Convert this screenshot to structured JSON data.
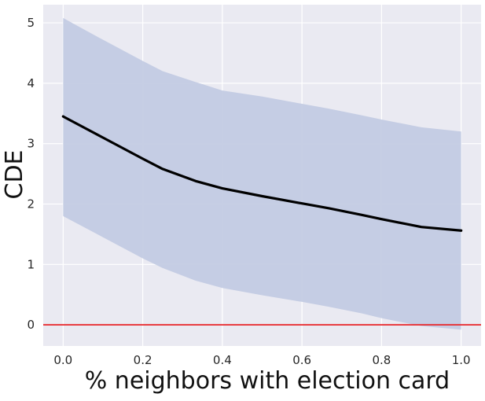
{
  "chart_data": {
    "type": "line",
    "title": "",
    "xlabel": "% neighbors with election card",
    "ylabel": "CDE",
    "xlim": [
      -0.05,
      1.05
    ],
    "ylim": [
      -0.35,
      5.3
    ],
    "x_ticks": [
      0.0,
      0.2,
      0.4,
      0.6,
      0.8,
      1.0
    ],
    "x_tick_labels": [
      "0.0",
      "0.2",
      "0.4",
      "0.6",
      "0.8",
      "1.0"
    ],
    "y_ticks": [
      0,
      1,
      2,
      3,
      4,
      5
    ],
    "y_tick_labels": [
      "0",
      "1",
      "2",
      "3",
      "4",
      "5"
    ],
    "grid": true,
    "background": "#eaeaf2",
    "series": [
      {
        "kind": "line",
        "color": "#000000",
        "x": [
          0.0,
          0.1,
          0.2,
          0.25,
          0.333,
          0.4,
          0.5,
          0.6,
          0.667,
          0.75,
          0.8,
          0.9,
          1.0
        ],
        "y": [
          3.45,
          3.1,
          2.75,
          2.58,
          2.38,
          2.26,
          2.13,
          2.01,
          1.93,
          1.82,
          1.75,
          1.62,
          1.56
        ]
      },
      {
        "kind": "band",
        "color": "#c3cbe3",
        "x": [
          0.0,
          0.1,
          0.2,
          0.25,
          0.333,
          0.4,
          0.5,
          0.6,
          0.667,
          0.75,
          0.8,
          0.9,
          1.0
        ],
        "lower": [
          1.8,
          1.45,
          1.1,
          0.94,
          0.73,
          0.61,
          0.49,
          0.38,
          0.3,
          0.19,
          0.11,
          -0.02,
          -0.08
        ],
        "upper": [
          5.08,
          4.72,
          4.37,
          4.2,
          4.02,
          3.88,
          3.78,
          3.66,
          3.58,
          3.47,
          3.4,
          3.27,
          3.2
        ]
      }
    ],
    "reference_line": {
      "y": 0,
      "color": "#e8262a"
    }
  }
}
